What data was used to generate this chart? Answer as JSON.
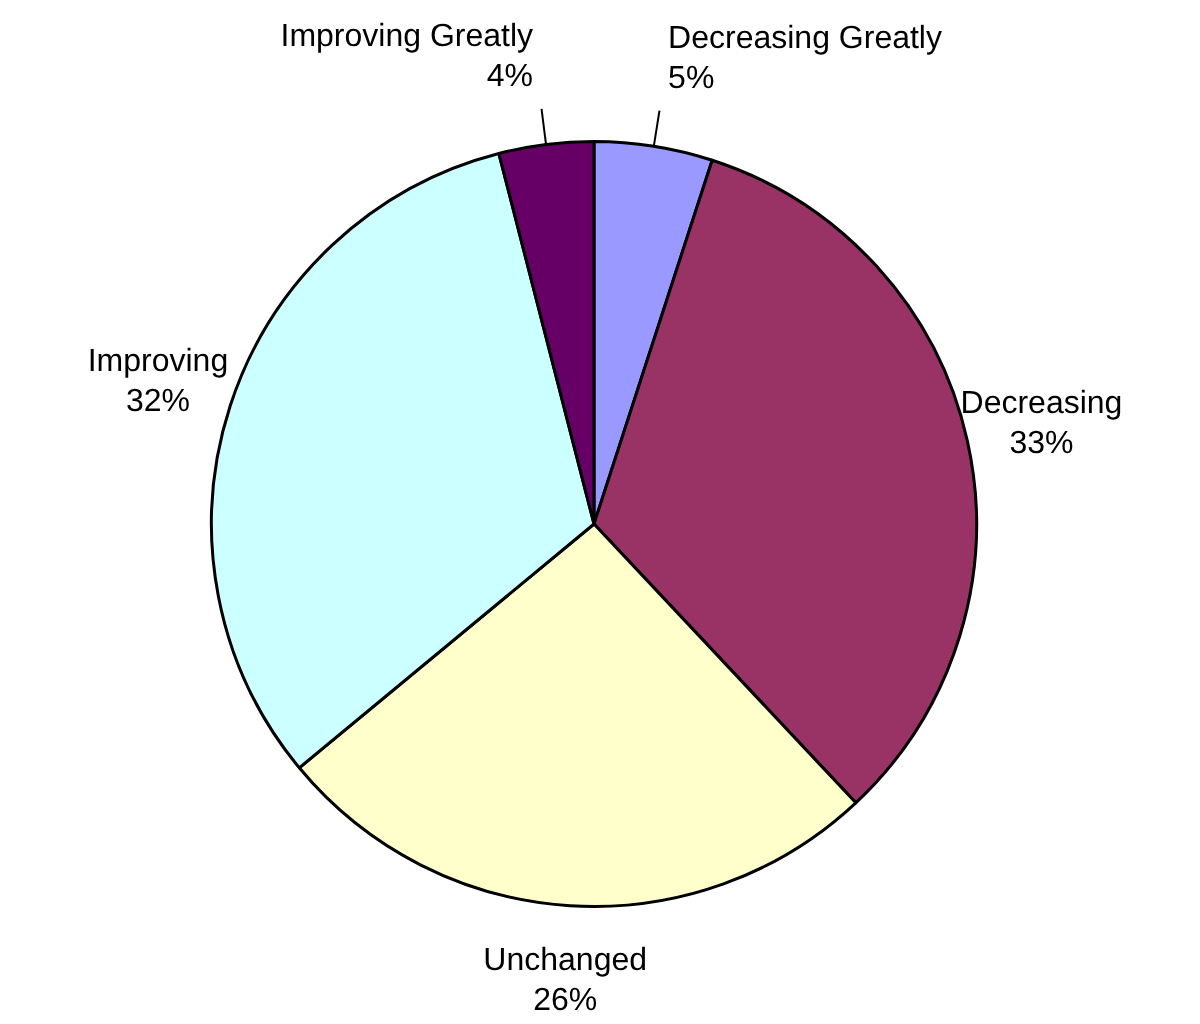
{
  "chart_data": {
    "type": "pie",
    "categories": [
      "Decreasing Greatly",
      "Decreasing",
      "Unchanged",
      "Improving",
      "Improving Greatly"
    ],
    "values": [
      5,
      33,
      26,
      32,
      4
    ],
    "value_labels": [
      "5%",
      "33%",
      "26%",
      "32%",
      "4%"
    ],
    "colors": [
      "#9999ff",
      "#993366",
      "#ffffcc",
      "#ccffff",
      "#660066"
    ],
    "legend": false
  }
}
